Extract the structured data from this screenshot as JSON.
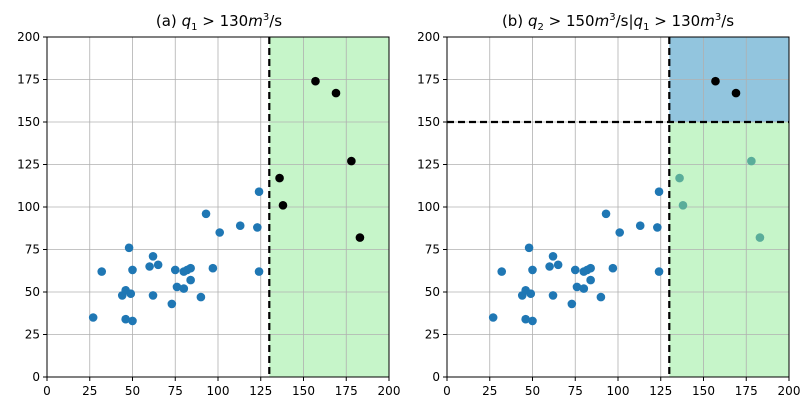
{
  "chart_data": [
    {
      "type": "scatter",
      "title": "(a) q1 > 130m3/s",
      "title_parts": {
        "prefix": "(a) ",
        "q1": "q",
        "q1_sub": "1",
        "op": " > 130",
        "m": "m",
        "m_sup": "3",
        "unit_tail": "/s"
      },
      "xlim": [
        0,
        200
      ],
      "ylim": [
        0,
        200
      ],
      "xticks": [
        0,
        25,
        50,
        75,
        100,
        125,
        150,
        175,
        200
      ],
      "yticks": [
        0,
        25,
        50,
        75,
        100,
        125,
        150,
        175,
        200
      ],
      "grid": true,
      "threshold_x": 130,
      "shaded_region": {
        "x": [
          130,
          200
        ],
        "y": [
          0,
          200
        ],
        "color": "#c6f5c9"
      },
      "series": [
        {
          "color": "#1f77b4",
          "points": [
            [
              27,
              35
            ],
            [
              32,
              62
            ],
            [
              44,
              48
            ],
            [
              46,
              51
            ],
            [
              46,
              34
            ],
            [
              48,
              76
            ],
            [
              49,
              49
            ],
            [
              50,
              63
            ],
            [
              50,
              33
            ],
            [
              60,
              65
            ],
            [
              62,
              71
            ],
            [
              62,
              48
            ],
            [
              65,
              66
            ],
            [
              73,
              43
            ],
            [
              75,
              63
            ],
            [
              76,
              53
            ],
            [
              80,
              52
            ],
            [
              80,
              62
            ],
            [
              82,
              63
            ],
            [
              84,
              57
            ],
            [
              84,
              64
            ],
            [
              90,
              47
            ],
            [
              93,
              96
            ],
            [
              97,
              64
            ],
            [
              101,
              85
            ],
            [
              113,
              89
            ],
            [
              123,
              88
            ],
            [
              124,
              62
            ],
            [
              124,
              109
            ]
          ]
        },
        {
          "color": "#000000",
          "points": [
            [
              136,
              117
            ],
            [
              138,
              101
            ],
            [
              157,
              174
            ],
            [
              169,
              167
            ],
            [
              178,
              127
            ],
            [
              183,
              82
            ]
          ]
        }
      ]
    },
    {
      "type": "scatter",
      "title": "(b) q2 > 150m3/s|q1 > 130m3/s",
      "title_parts": {
        "prefix": "(b) ",
        "q2": "q",
        "q2_sub": "2",
        "op2": " > 150",
        "m": "m",
        "m_sup": "3",
        "mid": "/s|",
        "q1": "q",
        "q1_sub": "1",
        "op1": " > 130",
        "unit_tail": "/s"
      },
      "xlim": [
        0,
        200
      ],
      "ylim": [
        0,
        200
      ],
      "xticks": [
        0,
        25,
        50,
        75,
        100,
        125,
        150,
        175,
        200
      ],
      "yticks": [
        0,
        25,
        50,
        75,
        100,
        125,
        150,
        175,
        200
      ],
      "grid": true,
      "threshold_x": 130,
      "threshold_y": 150,
      "shaded_region_green": {
        "x": [
          130,
          200
        ],
        "y": [
          0,
          150
        ],
        "color": "#c6f5c9"
      },
      "shaded_region_blue": {
        "x": [
          130,
          200
        ],
        "y": [
          150,
          200
        ],
        "color": "#92c5de"
      },
      "series": [
        {
          "color": "#1f77b4",
          "points": [
            [
              27,
              35
            ],
            [
              32,
              62
            ],
            [
              44,
              48
            ],
            [
              46,
              51
            ],
            [
              46,
              34
            ],
            [
              48,
              76
            ],
            [
              49,
              49
            ],
            [
              50,
              63
            ],
            [
              50,
              33
            ],
            [
              60,
              65
            ],
            [
              62,
              71
            ],
            [
              62,
              48
            ],
            [
              65,
              66
            ],
            [
              73,
              43
            ],
            [
              75,
              63
            ],
            [
              76,
              53
            ],
            [
              80,
              52
            ],
            [
              80,
              62
            ],
            [
              82,
              63
            ],
            [
              84,
              57
            ],
            [
              84,
              64
            ],
            [
              90,
              47
            ],
            [
              93,
              96
            ],
            [
              97,
              64
            ],
            [
              101,
              85
            ],
            [
              113,
              89
            ],
            [
              123,
              88
            ],
            [
              124,
              62
            ],
            [
              124,
              109
            ]
          ]
        },
        {
          "color": "#5aad9a",
          "points": [
            [
              136,
              117
            ],
            [
              138,
              101
            ],
            [
              178,
              127
            ],
            [
              183,
              82
            ]
          ]
        },
        {
          "color": "#000000",
          "points": [
            [
              157,
              174
            ],
            [
              169,
              167
            ]
          ]
        }
      ]
    }
  ]
}
